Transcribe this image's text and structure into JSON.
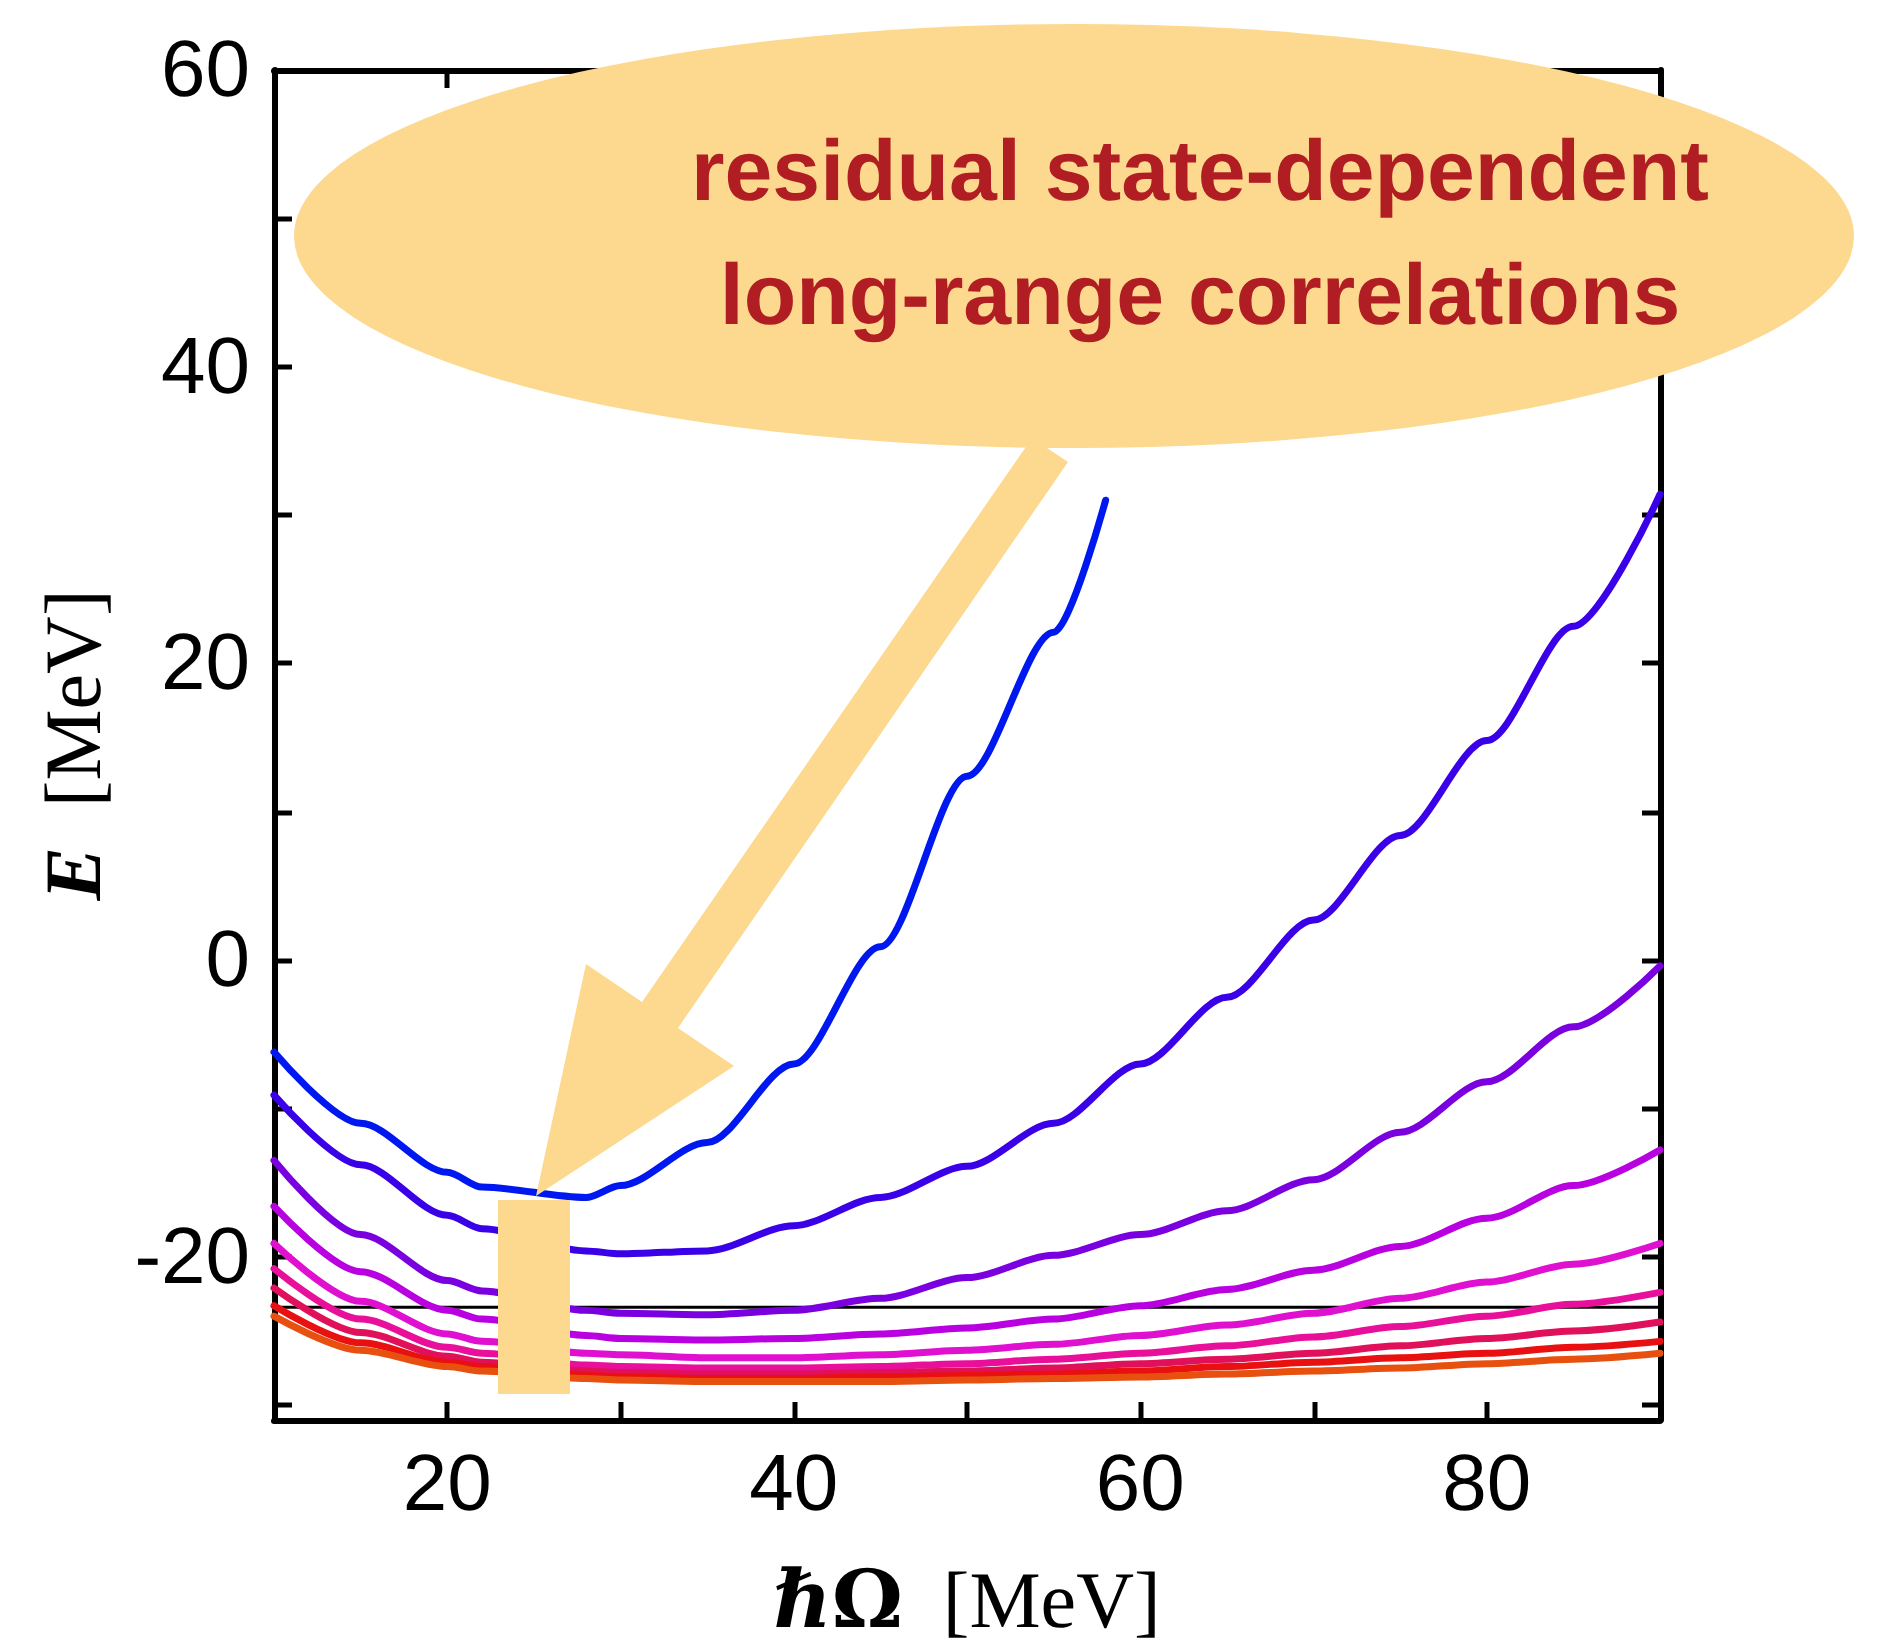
{
  "chart_data": {
    "type": "line",
    "xlabel": "ℏΩ [MeV]",
    "ylabel": "E [MeV]",
    "x": [
      10,
      15,
      20,
      22,
      28,
      30,
      35,
      40,
      45,
      50,
      55,
      60,
      65,
      70,
      75,
      80,
      85,
      90
    ],
    "xlim": [
      10,
      90
    ],
    "xticks": [
      20,
      {
        "value": 30,
        "label": null
      },
      40,
      {
        "value": 50,
        "label": null
      },
      60,
      {
        "value": 70,
        "label": null
      },
      80
    ],
    "ylim": [
      -31,
      60
    ],
    "yticks": [
      {
        "value": -30,
        "label": null
      },
      -20,
      {
        "value": -10,
        "label": null
      },
      0,
      {
        "value": 10,
        "label": null
      },
      20,
      {
        "value": 30,
        "label": null
      },
      40,
      {
        "value": 50,
        "label": null
      },
      60
    ],
    "grid": false,
    "marker": "none",
    "line_style": "solid",
    "series": [
      {
        "color": "#0018f0",
        "x": [
          10,
          15,
          20,
          22,
          28,
          30,
          35,
          40,
          45,
          50,
          55,
          58
        ],
        "values": [
          -6.2,
          -11.0,
          -14.3,
          -15.3,
          -16.0,
          -15.2,
          -12.3,
          -7.0,
          0.9,
          12.4,
          22.1,
          31
        ]
      },
      {
        "color": "#3a00e8",
        "values": [
          -9.1,
          -13.8,
          -17.2,
          -18.1,
          -19.6,
          -19.8,
          -19.6,
          -17.9,
          -16.0,
          -13.9,
          -11.0,
          -7.0,
          -2.5,
          2.7,
          8.4,
          14.8,
          22.5,
          31.4
        ]
      },
      {
        "color": "#7a00e0",
        "values": [
          -13.5,
          -18.5,
          -21.6,
          -22.3,
          -23.6,
          -23.8,
          -23.9,
          -23.6,
          -22.8,
          -21.4,
          -19.9,
          -18.5,
          -16.9,
          -14.8,
          -11.6,
          -8.2,
          -4.5,
          -0.4
        ]
      },
      {
        "color": "#b800e0",
        "values": [
          -16.6,
          -21.0,
          -23.6,
          -24.2,
          -25.3,
          -25.5,
          -25.6,
          -25.5,
          -25.2,
          -24.8,
          -24.2,
          -23.3,
          -22.2,
          -20.9,
          -19.3,
          -17.4,
          -15.2,
          -12.8
        ]
      },
      {
        "color": "#e010d0",
        "values": [
          -19.1,
          -23.0,
          -25.2,
          -25.7,
          -26.5,
          -26.6,
          -26.8,
          -26.8,
          -26.6,
          -26.3,
          -25.9,
          -25.3,
          -24.6,
          -23.8,
          -22.8,
          -21.7,
          -20.5,
          -19.1
        ]
      },
      {
        "color": "#e8109a",
        "values": [
          -20.8,
          -24.2,
          -26.1,
          -26.5,
          -27.3,
          -27.4,
          -27.5,
          -27.5,
          -27.4,
          -27.2,
          -26.9,
          -26.5,
          -26.0,
          -25.4,
          -24.7,
          -24.0,
          -23.2,
          -22.4
        ]
      },
      {
        "color": "#e0105a",
        "values": [
          -22.1,
          -25.1,
          -26.7,
          -27.1,
          -27.7,
          -27.8,
          -27.9,
          -27.9,
          -27.8,
          -27.7,
          -27.5,
          -27.2,
          -26.9,
          -26.5,
          -26.0,
          -25.5,
          -25.0,
          -24.4
        ]
      },
      {
        "color": "#e81010",
        "values": [
          -23.3,
          -25.8,
          -27.1,
          -27.4,
          -28.0,
          -28.1,
          -28.2,
          -28.2,
          -28.1,
          -28.0,
          -27.9,
          -27.7,
          -27.4,
          -27.1,
          -26.8,
          -26.5,
          -26.1,
          -25.7
        ]
      },
      {
        "color": "#e85010",
        "values": [
          -24.0,
          -26.3,
          -27.4,
          -27.7,
          -28.2,
          -28.3,
          -28.4,
          -28.4,
          -28.4,
          -28.3,
          -28.2,
          -28.1,
          -27.9,
          -27.7,
          -27.5,
          -27.2,
          -26.9,
          -26.5
        ]
      }
    ],
    "ref_lines": [
      {
        "axis": "y",
        "value": -23.4,
        "color": "#000000"
      }
    ],
    "annotations": [
      "residual state-dependent\nlong-range correlations"
    ]
  }
}
